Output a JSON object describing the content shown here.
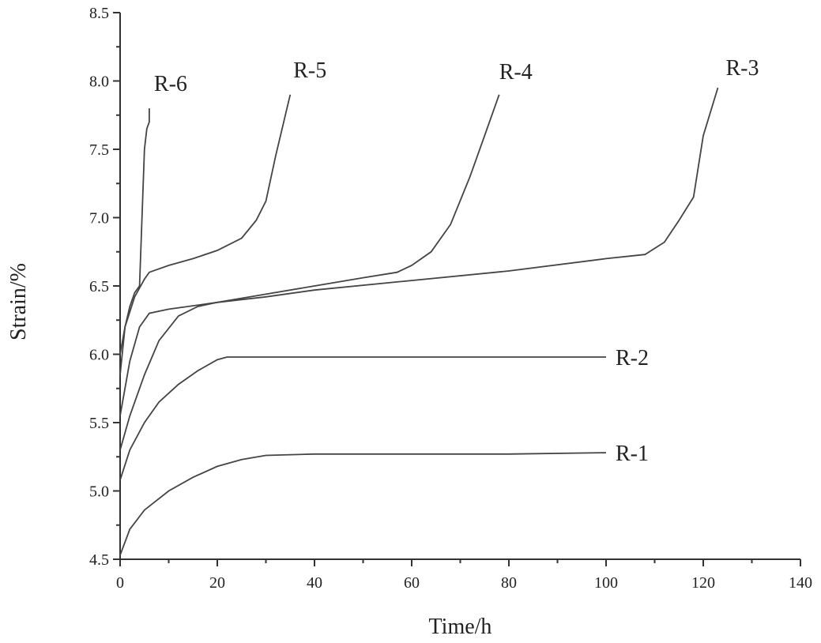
{
  "chart_data": {
    "type": "line",
    "xlabel": "Time/h",
    "ylabel": "Strain/%",
    "xlim": [
      0,
      140
    ],
    "ylim": [
      4.5,
      8.5
    ],
    "xticks": [
      0,
      20,
      40,
      60,
      80,
      100,
      120,
      140
    ],
    "yticks": [
      "4.5",
      "5.0",
      "5.5",
      "6.0",
      "6.5",
      "7.0",
      "7.5",
      "8.0",
      "8.5"
    ],
    "grid": false,
    "series": [
      {
        "name": "R-1",
        "x": [
          0,
          2,
          5,
          10,
          15,
          20,
          25,
          30,
          40,
          60,
          80,
          100
        ],
        "y": [
          4.53,
          4.72,
          4.86,
          5.0,
          5.1,
          5.18,
          5.23,
          5.26,
          5.27,
          5.27,
          5.27,
          5.28
        ]
      },
      {
        "name": "R-2",
        "x": [
          0,
          2,
          5,
          8,
          12,
          16,
          20,
          22,
          30,
          50,
          80,
          100
        ],
        "y": [
          5.08,
          5.3,
          5.5,
          5.65,
          5.78,
          5.88,
          5.96,
          5.98,
          5.98,
          5.98,
          5.98,
          5.98
        ]
      },
      {
        "name": "R-3",
        "x": [
          0,
          2,
          5,
          8,
          12,
          16,
          20,
          30,
          40,
          60,
          80,
          100,
          108,
          112,
          115,
          118,
          120,
          123
        ],
        "y": [
          5.3,
          5.55,
          5.85,
          6.1,
          6.28,
          6.35,
          6.38,
          6.42,
          6.47,
          6.54,
          6.61,
          6.7,
          6.73,
          6.82,
          6.98,
          7.15,
          7.6,
          7.95
        ]
      },
      {
        "name": "R-4",
        "x": [
          0,
          2,
          4,
          6,
          10,
          20,
          30,
          40,
          50,
          57,
          60,
          64,
          68,
          72,
          75,
          78
        ],
        "y": [
          5.55,
          5.95,
          6.2,
          6.3,
          6.33,
          6.38,
          6.44,
          6.5,
          6.56,
          6.6,
          6.65,
          6.75,
          6.95,
          7.3,
          7.6,
          7.9
        ]
      },
      {
        "name": "R-5",
        "x": [
          0,
          1,
          3,
          5,
          6,
          10,
          15,
          20,
          25,
          28,
          30,
          32,
          34,
          35
        ],
        "y": [
          5.85,
          6.2,
          6.42,
          6.55,
          6.6,
          6.65,
          6.7,
          6.76,
          6.85,
          6.98,
          7.12,
          7.45,
          7.75,
          7.9
        ]
      },
      {
        "name": "R-6",
        "x": [
          0,
          1,
          2,
          3,
          4,
          4.5,
          5,
          5.5,
          6,
          6
        ],
        "y": [
          6.0,
          6.2,
          6.35,
          6.45,
          6.5,
          7.0,
          7.5,
          7.65,
          7.7,
          7.8
        ]
      }
    ]
  }
}
